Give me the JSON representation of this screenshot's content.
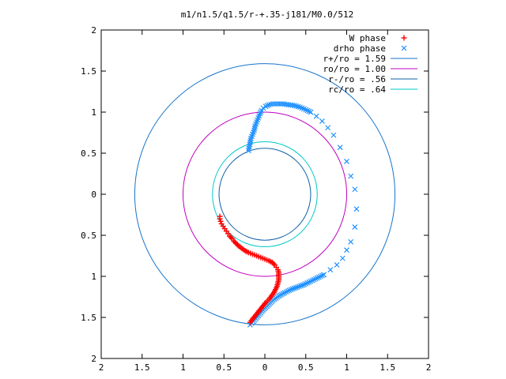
{
  "chart_data": {
    "type": "scatter",
    "title": "m1/n1.5/q1.5/r-+.35-j181/M0.0/512",
    "xlim": [
      -2,
      2
    ],
    "ylim": [
      -2,
      2
    ],
    "x_ticks": [
      -2,
      -1.5,
      -1,
      -0.5,
      0,
      0.5,
      1,
      1.5,
      2
    ],
    "y_ticks": [
      -2,
      -1.5,
      -1,
      -0.5,
      0,
      0.5,
      1,
      1.5,
      2
    ],
    "x_tick_labels": [
      "2",
      "1.5",
      "1",
      "0.5",
      "0",
      "0.5",
      "1",
      "1.5",
      "2"
    ],
    "y_tick_labels": [
      "2",
      "1.5",
      "1",
      "0.5",
      "0",
      "0.5",
      "1",
      "1.5",
      "2"
    ],
    "grid": false,
    "legend_position": "top-right",
    "series": [
      {
        "name": "W phase",
        "kind": "points",
        "marker": "+",
        "color": "#ff0000",
        "points": [
          [
            -0.55,
            -0.27
          ],
          [
            -0.55,
            -0.3
          ],
          [
            -0.54,
            -0.33
          ],
          [
            -0.53,
            -0.36
          ],
          [
            -0.51,
            -0.39
          ],
          [
            -0.49,
            -0.42
          ],
          [
            -0.47,
            -0.45
          ],
          [
            -0.45,
            -0.48
          ],
          [
            -0.43,
            -0.51
          ],
          [
            -0.4,
            -0.54
          ],
          [
            -0.38,
            -0.57
          ],
          [
            -0.35,
            -0.6
          ],
          [
            -0.32,
            -0.63
          ],
          [
            -0.28,
            -0.66
          ],
          [
            -0.24,
            -0.69
          ],
          [
            -0.2,
            -0.71
          ],
          [
            -0.15,
            -0.73
          ],
          [
            -0.1,
            -0.75
          ],
          [
            -0.05,
            -0.77
          ],
          [
            0.0,
            -0.79
          ],
          [
            0.05,
            -0.81
          ],
          [
            0.09,
            -0.83
          ],
          [
            0.12,
            -0.86
          ],
          [
            0.14,
            -0.89
          ],
          [
            0.16,
            -0.92
          ],
          [
            0.17,
            -0.96
          ],
          [
            0.17,
            -1.0
          ],
          [
            0.17,
            -1.04
          ],
          [
            0.16,
            -1.08
          ],
          [
            0.15,
            -1.12
          ],
          [
            0.13,
            -1.16
          ],
          [
            0.11,
            -1.2
          ],
          [
            0.08,
            -1.24
          ],
          [
            0.05,
            -1.28
          ],
          [
            0.01,
            -1.32
          ],
          [
            -0.03,
            -1.37
          ],
          [
            -0.07,
            -1.42
          ],
          [
            -0.11,
            -1.47
          ],
          [
            -0.15,
            -1.52
          ],
          [
            -0.18,
            -1.56
          ]
        ]
      },
      {
        "name": "drho phase",
        "kind": "points",
        "marker": "x",
        "color": "#1e90ff",
        "points": [
          [
            -0.2,
            0.53
          ],
          [
            -0.19,
            0.58
          ],
          [
            -0.18,
            0.63
          ],
          [
            -0.17,
            0.68
          ],
          [
            -0.15,
            0.73
          ],
          [
            -0.13,
            0.78
          ],
          [
            -0.12,
            0.83
          ],
          [
            -0.1,
            0.88
          ],
          [
            -0.08,
            0.93
          ],
          [
            -0.06,
            0.98
          ],
          [
            -0.04,
            1.02
          ],
          [
            -0.02,
            1.05
          ],
          [
            0.01,
            1.07
          ],
          [
            0.05,
            1.09
          ],
          [
            0.1,
            1.1
          ],
          [
            0.15,
            1.1
          ],
          [
            0.22,
            1.1
          ],
          [
            0.29,
            1.09
          ],
          [
            0.36,
            1.08
          ],
          [
            0.43,
            1.06
          ],
          [
            0.5,
            1.03
          ],
          [
            0.56,
            1.0
          ],
          [
            0.63,
            0.95
          ],
          [
            0.7,
            0.89
          ],
          [
            0.77,
            0.81
          ],
          [
            0.84,
            0.72
          ],
          [
            0.92,
            0.57
          ],
          [
            1.0,
            0.4
          ],
          [
            1.05,
            0.22
          ],
          [
            1.1,
            0.06
          ],
          [
            1.12,
            -0.18
          ],
          [
            1.1,
            -0.4
          ],
          [
            1.05,
            -0.58
          ],
          [
            1.0,
            -0.68
          ],
          [
            0.95,
            -0.78
          ],
          [
            0.88,
            -0.86
          ],
          [
            0.8,
            -0.92
          ],
          [
            0.72,
            -0.98
          ],
          [
            0.64,
            -1.02
          ],
          [
            0.56,
            -1.06
          ],
          [
            0.48,
            -1.1
          ],
          [
            0.4,
            -1.13
          ],
          [
            0.32,
            -1.16
          ],
          [
            0.24,
            -1.2
          ],
          [
            0.17,
            -1.24
          ],
          [
            0.1,
            -1.29
          ],
          [
            0.04,
            -1.35
          ],
          [
            -0.02,
            -1.41
          ],
          [
            -0.08,
            -1.48
          ],
          [
            -0.14,
            -1.55
          ],
          [
            -0.18,
            -1.59
          ]
        ]
      },
      {
        "name": "r+/ro = 1.59",
        "kind": "circle",
        "r": 1.59,
        "color": "#1874cd"
      },
      {
        "name": "ro/ro = 1.00",
        "kind": "circle",
        "r": 1.0,
        "color": "#c000c0"
      },
      {
        "name": "r-/ro = .56",
        "kind": "circle",
        "r": 0.56,
        "color": "#1060a8"
      },
      {
        "name": "rc/ro = .64",
        "kind": "circle",
        "r": 0.64,
        "color": "#00c8c8"
      }
    ]
  }
}
